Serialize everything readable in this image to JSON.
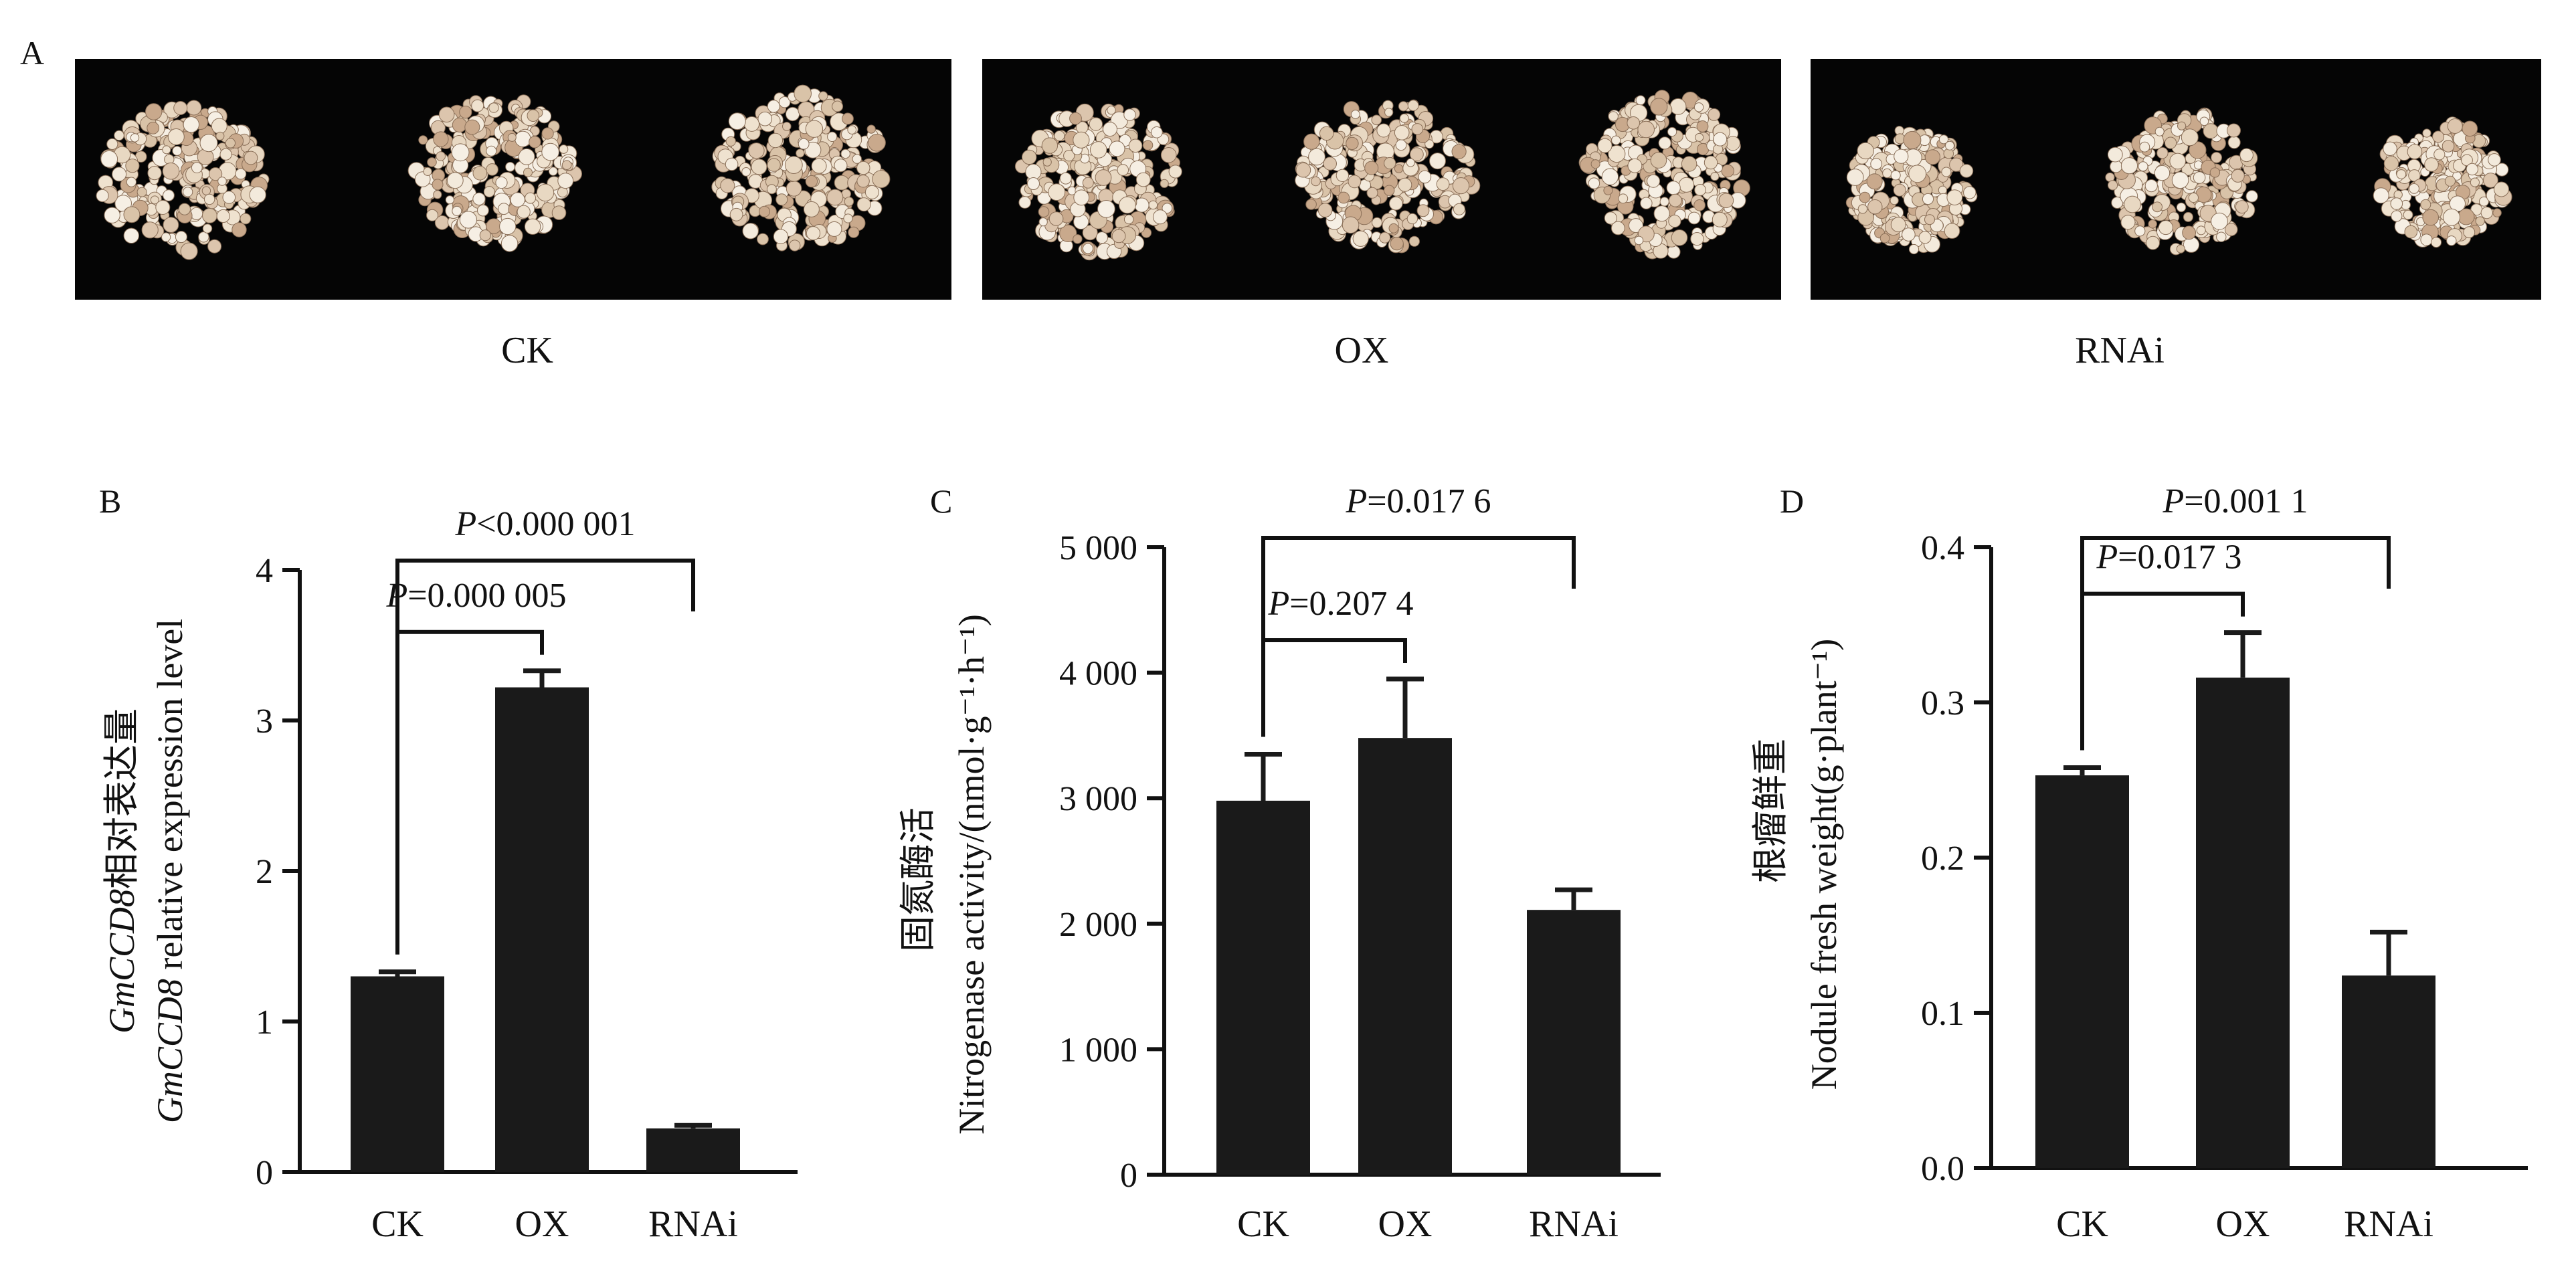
{
  "panels": {
    "a": "A",
    "b": "B",
    "c": "C",
    "d": "D"
  },
  "photos": {
    "labels": [
      "CK",
      "OX",
      "RNAi"
    ],
    "background": "#050505",
    "nodule_color": "#e8d8c2"
  },
  "colors": {
    "bar": "#1a1a1a",
    "axis": "#111111"
  },
  "chart_data": [
    {
      "type": "bar",
      "panel": "B",
      "categories": [
        "CK",
        "OX",
        "RNAi"
      ],
      "values": [
        1.3,
        3.22,
        0.29
      ],
      "errors": [
        0.03,
        0.11,
        0.02
      ],
      "ylabel_italic": "GmCCD8",
      "ylabel_cn": "相对表达量",
      "ylabel_en_italic": "GmCCD8",
      "ylabel_en": " relative expression level",
      "ylim": [
        0,
        4
      ],
      "yticks": [
        "0",
        "1",
        "2",
        "3",
        "4"
      ],
      "comparisons": [
        {
          "from": 0,
          "to": 1,
          "p_prefix": "P",
          "p_text": "=0.000 005",
          "level": 1
        },
        {
          "from": 0,
          "to": 2,
          "p_prefix": "P",
          "p_text": "<0.000 001",
          "level": 2
        }
      ]
    },
    {
      "type": "bar",
      "panel": "C",
      "categories": [
        "CK",
        "OX",
        "RNAi"
      ],
      "values": [
        2980,
        3480,
        2110
      ],
      "errors": [
        370,
        470,
        160
      ],
      "ylabel_cn": "固氮酶活",
      "ylabel_en": "Nitrogenase activity/(nmol·g⁻¹·h⁻¹)",
      "ylim": [
        0,
        5000
      ],
      "yticks": [
        "0",
        "1 000",
        "2 000",
        "3 000",
        "4 000",
        "5 000"
      ],
      "comparisons": [
        {
          "from": 0,
          "to": 1,
          "p_prefix": "P",
          "p_text": "=0.207 4",
          "level": 1
        },
        {
          "from": 0,
          "to": 2,
          "p_prefix": "P",
          "p_text": "=0.017 6",
          "level": 2
        }
      ]
    },
    {
      "type": "bar",
      "panel": "D",
      "categories": [
        "CK",
        "OX",
        "RNAi"
      ],
      "values": [
        0.253,
        0.316,
        0.124
      ],
      "errors": [
        0.005,
        0.029,
        0.028
      ],
      "ylabel_cn": "根瘤鲜重",
      "ylabel_en": "Nodule fresh weight(g·plant⁻¹)",
      "ylim": [
        0,
        0.4
      ],
      "yticks": [
        "0.0",
        "0.1",
        "0.2",
        "0.3",
        "0.4"
      ],
      "comparisons": [
        {
          "from": 0,
          "to": 1,
          "p_prefix": "P",
          "p_text": "=0.017 3",
          "level": 1
        },
        {
          "from": 0,
          "to": 2,
          "p_prefix": "P",
          "p_text": "=0.001 1",
          "level": 2
        }
      ]
    }
  ]
}
